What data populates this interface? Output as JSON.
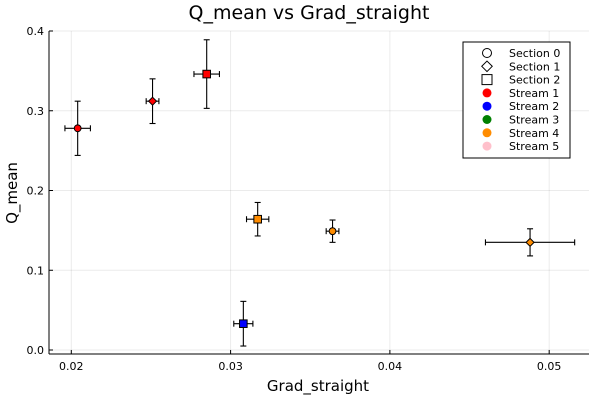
{
  "chart_data": {
    "type": "scatter",
    "title": "Q_mean vs Grad_straight",
    "xlabel": "Grad_straight",
    "ylabel": "Q_mean",
    "xlim": [
      0.0186,
      0.0525
    ],
    "ylim": [
      -0.005,
      0.4
    ],
    "xticks": [
      0.02,
      0.03,
      0.04,
      0.05
    ],
    "xtick_labels": [
      "0.02",
      "0.03",
      "0.04",
      "0.05"
    ],
    "yticks": [
      0.0,
      0.1,
      0.2,
      0.3,
      0.4
    ],
    "ytick_labels": [
      "0.0",
      "0.1",
      "0.2",
      "0.3",
      "0.4"
    ],
    "grid": true,
    "legend_position": "top-right",
    "legend": [
      {
        "label": "Section 0",
        "marker": "circle",
        "color": "#ffffff"
      },
      {
        "label": "Section 1",
        "marker": "diamond",
        "color": "#ffffff"
      },
      {
        "label": "Section 2",
        "marker": "square",
        "color": "#ffffff"
      },
      {
        "label": "Stream 1",
        "marker": "circle",
        "color": "#ff0000"
      },
      {
        "label": "Stream 2",
        "marker": "circle",
        "color": "#0000ff"
      },
      {
        "label": "Stream 3",
        "marker": "circle",
        "color": "#008000"
      },
      {
        "label": "Stream 4",
        "marker": "circle",
        "color": "#ff8c00"
      },
      {
        "label": "Stream 5",
        "marker": "circle",
        "color": "#ffc0cb"
      }
    ],
    "points": [
      {
        "x": 0.0204,
        "y": 0.278,
        "xerr": 0.0008,
        "yerr": 0.034,
        "section": 0,
        "stream": 1,
        "color": "#ff0000"
      },
      {
        "x": 0.0251,
        "y": 0.312,
        "xerr": 0.0004,
        "yerr": 0.028,
        "section": 1,
        "stream": 1,
        "color": "#ff0000"
      },
      {
        "x": 0.0285,
        "y": 0.346,
        "xerr": 0.0008,
        "yerr": 0.043,
        "section": 2,
        "stream": 1,
        "color": "#ff0000"
      },
      {
        "x": 0.0317,
        "y": 0.164,
        "xerr": 0.0007,
        "yerr": 0.021,
        "section": 2,
        "stream": 4,
        "color": "#ff8c00"
      },
      {
        "x": 0.0364,
        "y": 0.149,
        "xerr": 0.0004,
        "yerr": 0.014,
        "section": 0,
        "stream": 4,
        "color": "#ff8c00"
      },
      {
        "x": 0.0488,
        "y": 0.135,
        "xerr": 0.0028,
        "yerr": 0.017,
        "section": 1,
        "stream": 4,
        "color": "#ff8c00"
      },
      {
        "x": 0.0308,
        "y": 0.033,
        "xerr": 0.0006,
        "yerr": 0.028,
        "section": 2,
        "stream": 2,
        "color": "#0000ff"
      }
    ]
  }
}
